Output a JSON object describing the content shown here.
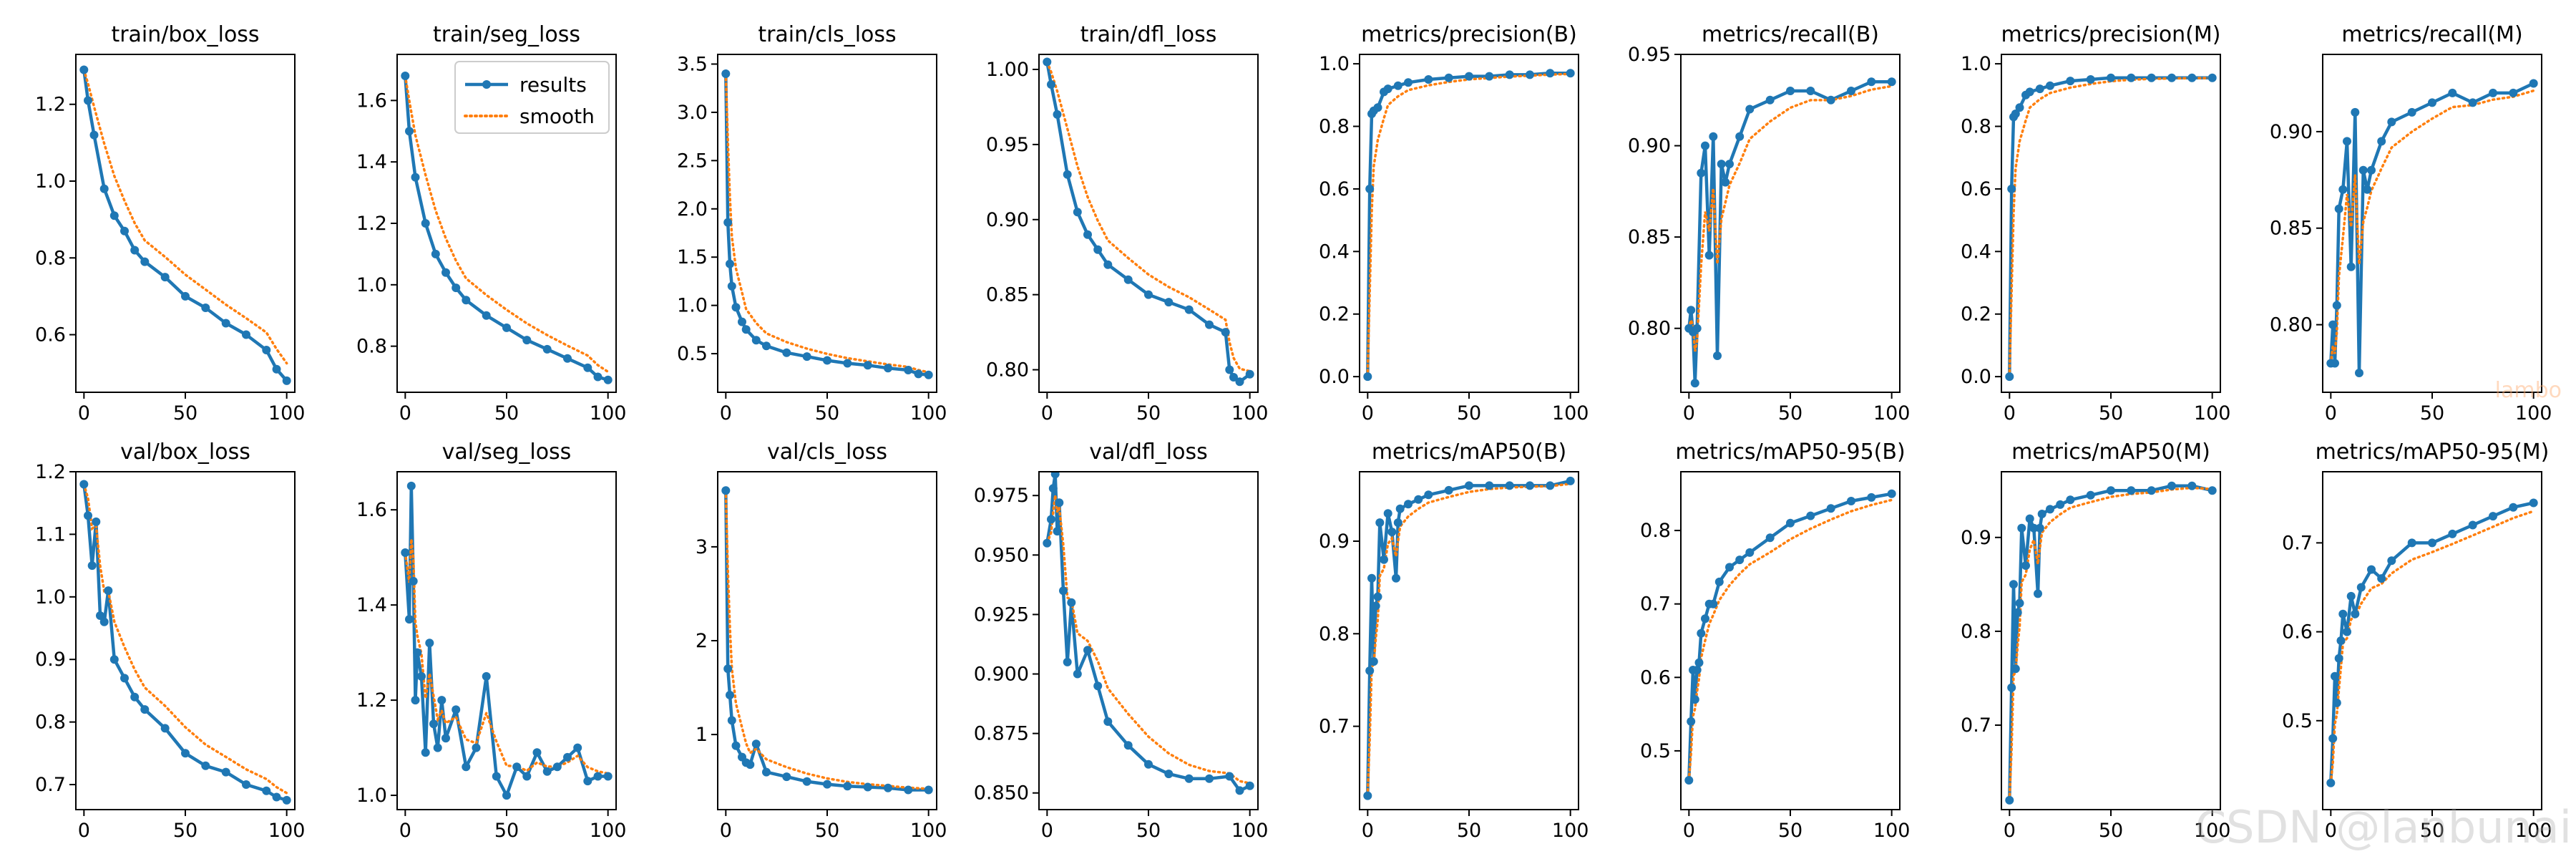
{
  "colors": {
    "results": "#1f77b4",
    "smooth": "#ff7f0e",
    "axis": "#000000",
    "background": "#ffffff"
  },
  "watermark": {
    "main": "CSDN @lanbunai",
    "faint": "lambo"
  },
  "chart_data": [
    {
      "type": "line",
      "title": "train/box_loss",
      "xlim": [
        -4,
        104
      ],
      "ylim": [
        0.45,
        1.33
      ],
      "xticks": [
        0,
        50,
        100
      ],
      "yticks": [
        0.6,
        0.8,
        1.0,
        1.2
      ],
      "series": [
        {
          "name": "results",
          "x": [
            0,
            2,
            5,
            10,
            15,
            20,
            25,
            30,
            40,
            50,
            60,
            70,
            80,
            90,
            95,
            100
          ],
          "y": [
            1.29,
            1.21,
            1.12,
            0.98,
            0.91,
            0.87,
            0.82,
            0.79,
            0.75,
            0.7,
            0.67,
            0.63,
            0.6,
            0.56,
            0.51,
            0.48
          ]
        }
      ],
      "legend": null
    },
    {
      "type": "line",
      "title": "train/seg_loss",
      "xlim": [
        -4,
        104
      ],
      "ylim": [
        0.65,
        1.75
      ],
      "xticks": [
        0,
        50,
        100
      ],
      "yticks": [
        0.8,
        1.0,
        1.2,
        1.4,
        1.6
      ],
      "series": [
        {
          "name": "results",
          "x": [
            0,
            2,
            5,
            10,
            15,
            20,
            25,
            30,
            40,
            50,
            60,
            70,
            80,
            90,
            95,
            100
          ],
          "y": [
            1.68,
            1.5,
            1.35,
            1.2,
            1.1,
            1.04,
            0.99,
            0.95,
            0.9,
            0.86,
            0.82,
            0.79,
            0.76,
            0.73,
            0.7,
            0.69
          ]
        }
      ],
      "legend": {
        "labels": [
          "results",
          "smooth"
        ],
        "position": "top-right"
      }
    },
    {
      "type": "line",
      "title": "train/cls_loss",
      "xlim": [
        -4,
        104
      ],
      "ylim": [
        0.1,
        3.6
      ],
      "xticks": [
        0,
        50,
        100
      ],
      "yticks": [
        0.5,
        1.0,
        1.5,
        2.0,
        2.5,
        3.0,
        3.5
      ],
      "series": [
        {
          "name": "results",
          "x": [
            0,
            1,
            2,
            3,
            5,
            8,
            10,
            15,
            20,
            30,
            40,
            50,
            60,
            70,
            80,
            90,
            95,
            100
          ],
          "y": [
            3.4,
            1.86,
            1.43,
            1.2,
            0.98,
            0.83,
            0.75,
            0.64,
            0.58,
            0.51,
            0.47,
            0.43,
            0.4,
            0.38,
            0.35,
            0.33,
            0.29,
            0.28
          ]
        }
      ],
      "legend": null
    },
    {
      "type": "line",
      "title": "train/dfl_loss",
      "xlim": [
        -4,
        104
      ],
      "ylim": [
        0.785,
        1.01
      ],
      "xticks": [
        0,
        50,
        100
      ],
      "yticks": [
        0.8,
        0.85,
        0.9,
        0.95,
        1.0
      ],
      "series": [
        {
          "name": "results",
          "x": [
            0,
            2,
            5,
            10,
            15,
            20,
            25,
            30,
            40,
            50,
            60,
            70,
            80,
            88,
            90,
            92,
            95,
            100
          ],
          "y": [
            1.005,
            0.99,
            0.97,
            0.93,
            0.905,
            0.89,
            0.88,
            0.87,
            0.86,
            0.85,
            0.845,
            0.84,
            0.83,
            0.825,
            0.8,
            0.795,
            0.792,
            0.797
          ]
        }
      ],
      "legend": null
    },
    {
      "type": "line",
      "title": "metrics/precision(B)",
      "xlim": [
        -4,
        104
      ],
      "ylim": [
        -0.05,
        1.03
      ],
      "xticks": [
        0,
        50,
        100
      ],
      "yticks": [
        0.0,
        0.2,
        0.4,
        0.6,
        0.8,
        1.0
      ],
      "series": [
        {
          "name": "results",
          "x": [
            0,
            1,
            2,
            3,
            5,
            8,
            10,
            15,
            20,
            30,
            40,
            50,
            60,
            70,
            80,
            90,
            100
          ],
          "y": [
            0.0,
            0.6,
            0.84,
            0.85,
            0.86,
            0.91,
            0.92,
            0.93,
            0.94,
            0.95,
            0.955,
            0.96,
            0.96,
            0.965,
            0.965,
            0.97,
            0.97
          ]
        }
      ],
      "legend": null
    },
    {
      "type": "line",
      "title": "metrics/recall(B)",
      "xlim": [
        -4,
        104
      ],
      "ylim": [
        0.765,
        0.95
      ],
      "xticks": [
        0,
        50,
        100
      ],
      "yticks": [
        0.8,
        0.85,
        0.9,
        0.95
      ],
      "series": [
        {
          "name": "results",
          "x": [
            0,
            1,
            2,
            3,
            4,
            6,
            8,
            10,
            12,
            14,
            16,
            18,
            20,
            25,
            30,
            40,
            50,
            60,
            70,
            80,
            90,
            100
          ],
          "y": [
            0.8,
            0.81,
            0.798,
            0.77,
            0.8,
            0.885,
            0.9,
            0.84,
            0.905,
            0.785,
            0.89,
            0.88,
            0.89,
            0.905,
            0.92,
            0.925,
            0.93,
            0.93,
            0.925,
            0.93,
            0.935,
            0.935
          ]
        }
      ],
      "legend": null
    },
    {
      "type": "line",
      "title": "metrics/precision(M)",
      "xlim": [
        -4,
        104
      ],
      "ylim": [
        -0.05,
        1.03
      ],
      "xticks": [
        0,
        50,
        100
      ],
      "yticks": [
        0.0,
        0.2,
        0.4,
        0.6,
        0.8,
        1.0
      ],
      "series": [
        {
          "name": "results",
          "x": [
            0,
            1,
            2,
            3,
            5,
            8,
            10,
            15,
            20,
            30,
            40,
            50,
            60,
            70,
            80,
            90,
            100
          ],
          "y": [
            0.0,
            0.6,
            0.83,
            0.84,
            0.86,
            0.9,
            0.91,
            0.92,
            0.93,
            0.945,
            0.95,
            0.955,
            0.955,
            0.955,
            0.955,
            0.955,
            0.955
          ]
        }
      ],
      "legend": null
    },
    {
      "type": "line",
      "title": "metrics/recall(M)",
      "xlim": [
        -4,
        104
      ],
      "ylim": [
        0.765,
        0.94
      ],
      "xticks": [
        0,
        50,
        100
      ],
      "yticks": [
        0.8,
        0.85,
        0.9
      ],
      "series": [
        {
          "name": "results",
          "x": [
            0,
            1,
            2,
            3,
            4,
            6,
            8,
            10,
            12,
            14,
            16,
            18,
            20,
            25,
            30,
            40,
            50,
            60,
            70,
            80,
            90,
            100
          ],
          "y": [
            0.78,
            0.8,
            0.78,
            0.81,
            0.86,
            0.87,
            0.895,
            0.83,
            0.91,
            0.775,
            0.88,
            0.87,
            0.88,
            0.895,
            0.905,
            0.91,
            0.915,
            0.92,
            0.915,
            0.92,
            0.92,
            0.925
          ]
        }
      ],
      "legend": null
    },
    {
      "type": "line",
      "title": "val/box_loss",
      "xlim": [
        -4,
        104
      ],
      "ylim": [
        0.66,
        1.2
      ],
      "xticks": [
        0,
        50,
        100
      ],
      "yticks": [
        0.7,
        0.8,
        0.9,
        1.0,
        1.1,
        1.2
      ],
      "series": [
        {
          "name": "results",
          "x": [
            0,
            2,
            4,
            6,
            8,
            10,
            12,
            15,
            20,
            25,
            30,
            40,
            50,
            60,
            70,
            80,
            90,
            95,
            100
          ],
          "y": [
            1.18,
            1.13,
            1.05,
            1.12,
            0.97,
            0.96,
            1.01,
            0.9,
            0.87,
            0.84,
            0.82,
            0.79,
            0.75,
            0.73,
            0.72,
            0.7,
            0.69,
            0.68,
            0.675
          ]
        }
      ],
      "legend": null
    },
    {
      "type": "line",
      "title": "val/seg_loss",
      "xlim": [
        -4,
        104
      ],
      "ylim": [
        0.97,
        1.68
      ],
      "xticks": [
        0,
        50,
        100
      ],
      "yticks": [
        1.0,
        1.2,
        1.4,
        1.6
      ],
      "series": [
        {
          "name": "results",
          "x": [
            0,
            2,
            3,
            4,
            5,
            6,
            8,
            10,
            12,
            14,
            16,
            18,
            20,
            25,
            30,
            35,
            40,
            45,
            50,
            55,
            60,
            65,
            70,
            75,
            80,
            85,
            90,
            95,
            100
          ],
          "y": [
            1.51,
            1.37,
            1.65,
            1.45,
            1.2,
            1.3,
            1.25,
            1.09,
            1.32,
            1.15,
            1.1,
            1.2,
            1.12,
            1.18,
            1.06,
            1.1,
            1.25,
            1.04,
            1.0,
            1.06,
            1.04,
            1.09,
            1.05,
            1.06,
            1.08,
            1.1,
            1.03,
            1.04,
            1.04
          ]
        }
      ],
      "legend": null
    },
    {
      "type": "line",
      "title": "val/cls_loss",
      "xlim": [
        -4,
        104
      ],
      "ylim": [
        0.2,
        3.8
      ],
      "xticks": [
        0,
        50,
        100
      ],
      "yticks": [
        1,
        2,
        3
      ],
      "series": [
        {
          "name": "results",
          "x": [
            0,
            1,
            2,
            3,
            5,
            8,
            10,
            12,
            15,
            20,
            30,
            40,
            50,
            60,
            70,
            80,
            90,
            100
          ],
          "y": [
            3.6,
            1.7,
            1.42,
            1.15,
            0.88,
            0.76,
            0.7,
            0.68,
            0.9,
            0.6,
            0.55,
            0.5,
            0.47,
            0.45,
            0.44,
            0.43,
            0.41,
            0.41
          ]
        }
      ],
      "legend": null
    },
    {
      "type": "line",
      "title": "val/dfl_loss",
      "xlim": [
        -4,
        104
      ],
      "ylim": [
        0.843,
        0.985
      ],
      "xticks": [
        0,
        50,
        100
      ],
      "yticks": [
        0.85,
        0.875,
        0.9,
        0.925,
        0.95,
        0.975
      ],
      "series": [
        {
          "name": "results",
          "x": [
            0,
            2,
            3,
            4,
            5,
            6,
            8,
            10,
            12,
            15,
            20,
            25,
            30,
            40,
            50,
            60,
            70,
            80,
            90,
            95,
            100
          ],
          "y": [
            0.955,
            0.965,
            0.978,
            0.984,
            0.96,
            0.972,
            0.935,
            0.905,
            0.93,
            0.9,
            0.91,
            0.895,
            0.88,
            0.87,
            0.862,
            0.858,
            0.856,
            0.856,
            0.857,
            0.851,
            0.853
          ]
        }
      ],
      "legend": null
    },
    {
      "type": "line",
      "title": "metrics/mAP50(B)",
      "xlim": [
        -4,
        104
      ],
      "ylim": [
        0.61,
        0.975
      ],
      "xticks": [
        0,
        50,
        100
      ],
      "yticks": [
        0.7,
        0.8,
        0.9
      ],
      "series": [
        {
          "name": "results",
          "x": [
            0,
            1,
            2,
            3,
            4,
            5,
            6,
            8,
            10,
            12,
            14,
            15,
            16,
            20,
            25,
            30,
            40,
            50,
            60,
            70,
            80,
            90,
            100
          ],
          "y": [
            0.625,
            0.76,
            0.86,
            0.77,
            0.83,
            0.84,
            0.92,
            0.88,
            0.93,
            0.91,
            0.86,
            0.92,
            0.935,
            0.94,
            0.945,
            0.95,
            0.955,
            0.96,
            0.96,
            0.96,
            0.96,
            0.96,
            0.965
          ]
        }
      ],
      "legend": null
    },
    {
      "type": "line",
      "title": "metrics/mAP50-95(B)",
      "xlim": [
        -4,
        104
      ],
      "ylim": [
        0.42,
        0.88
      ],
      "xticks": [
        0,
        50,
        100
      ],
      "yticks": [
        0.5,
        0.6,
        0.7,
        0.8
      ],
      "series": [
        {
          "name": "results",
          "x": [
            0,
            1,
            2,
            3,
            4,
            5,
            6,
            8,
            10,
            12,
            15,
            20,
            25,
            30,
            40,
            50,
            60,
            70,
            80,
            90,
            100
          ],
          "y": [
            0.46,
            0.54,
            0.61,
            0.57,
            0.61,
            0.62,
            0.66,
            0.68,
            0.7,
            0.7,
            0.73,
            0.75,
            0.76,
            0.77,
            0.79,
            0.81,
            0.82,
            0.83,
            0.84,
            0.845,
            0.85
          ]
        }
      ],
      "legend": null
    },
    {
      "type": "line",
      "title": "metrics/mAP50(M)",
      "xlim": [
        -4,
        104
      ],
      "ylim": [
        0.61,
        0.97
      ],
      "xticks": [
        0,
        50,
        100
      ],
      "yticks": [
        0.7,
        0.8,
        0.9
      ],
      "series": [
        {
          "name": "results",
          "x": [
            0,
            1,
            2,
            3,
            4,
            5,
            6,
            8,
            10,
            12,
            14,
            15,
            16,
            20,
            25,
            30,
            40,
            50,
            60,
            70,
            80,
            90,
            100
          ],
          "y": [
            0.62,
            0.74,
            0.85,
            0.76,
            0.82,
            0.83,
            0.91,
            0.87,
            0.92,
            0.91,
            0.84,
            0.91,
            0.925,
            0.93,
            0.935,
            0.94,
            0.945,
            0.95,
            0.95,
            0.95,
            0.955,
            0.955,
            0.95
          ]
        }
      ],
      "legend": null
    },
    {
      "type": "line",
      "title": "metrics/mAP50-95(M)",
      "xlim": [
        -4,
        104
      ],
      "ylim": [
        0.4,
        0.78
      ],
      "xticks": [
        0,
        50,
        100
      ],
      "yticks": [
        0.5,
        0.6,
        0.7
      ],
      "series": [
        {
          "name": "results",
          "x": [
            0,
            1,
            2,
            3,
            4,
            5,
            6,
            8,
            10,
            12,
            15,
            20,
            25,
            30,
            40,
            50,
            60,
            70,
            80,
            90,
            100
          ],
          "y": [
            0.43,
            0.48,
            0.55,
            0.52,
            0.57,
            0.59,
            0.62,
            0.6,
            0.64,
            0.62,
            0.65,
            0.67,
            0.66,
            0.68,
            0.7,
            0.7,
            0.71,
            0.72,
            0.73,
            0.74,
            0.745
          ]
        }
      ],
      "legend": null
    }
  ]
}
